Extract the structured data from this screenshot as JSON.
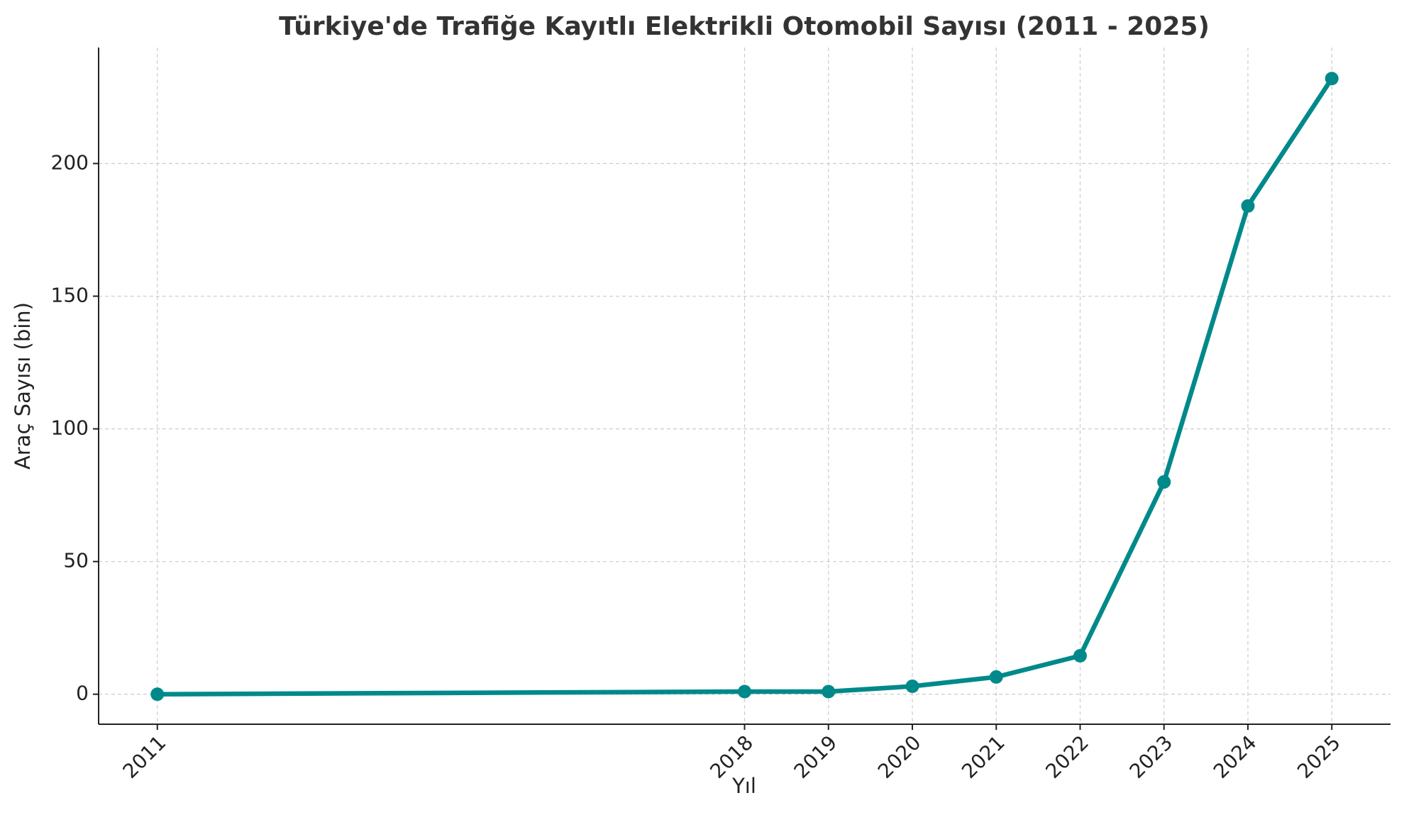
{
  "chart_data": {
    "type": "line",
    "title": "Türkiye'de Trafiğe Kayıtlı Elektrikli Otomobil Sayısı (2011 - 2025)",
    "x_label": "Yıl",
    "y_label": "Araç Sayısı (bin)",
    "x": [
      2011,
      2018,
      2019,
      2020,
      2021,
      2022,
      2023,
      2024,
      2025
    ],
    "values": [
      0,
      1,
      1,
      3,
      6.5,
      14.5,
      80,
      184,
      232
    ],
    "color": "#00898a",
    "xlim": [
      2010.3,
      2025.7
    ],
    "xticks": [
      2011,
      2018,
      2019,
      2020,
      2021,
      2022,
      2023,
      2024,
      2025
    ],
    "ylim": [
      -11.3,
      243.7
    ],
    "yticks": [
      0,
      50,
      100,
      150,
      200
    ],
    "grid": true
  }
}
